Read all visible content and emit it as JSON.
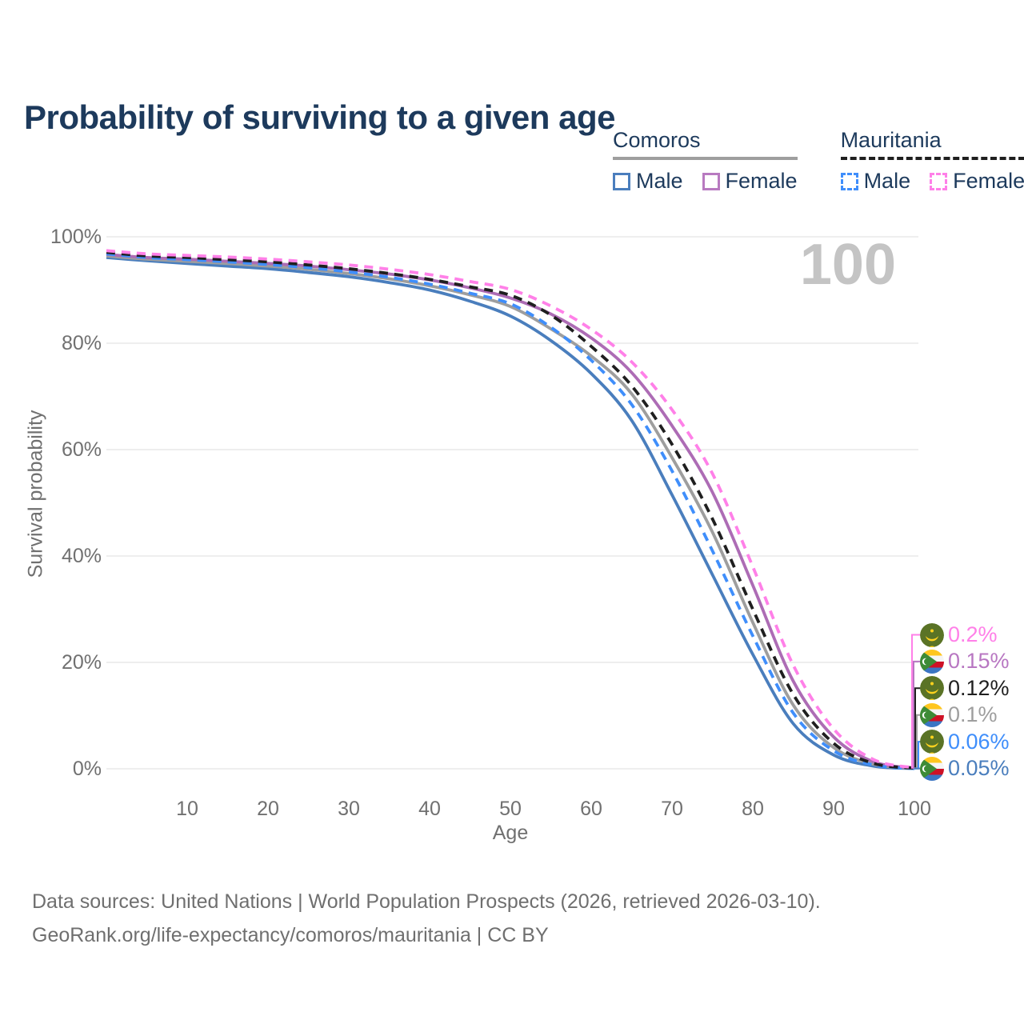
{
  "title": "Probability of surviving to a given age",
  "watermark_age": "100",
  "legend": {
    "groups": [
      {
        "name": "Comoros",
        "line_style": "solid",
        "line_color": "#9e9e9e",
        "items": [
          {
            "label": "Male",
            "color": "#4a7ebd",
            "dashed": false
          },
          {
            "label": "Female",
            "color": "#b87ac0",
            "dashed": false
          }
        ]
      },
      {
        "name": "Mauritania",
        "line_style": "dashed",
        "line_color": "#1f1f1f",
        "items": [
          {
            "label": "Male",
            "color": "#3f8efb",
            "dashed": true
          },
          {
            "label": "Female",
            "color": "#ff80e8",
            "dashed": true
          }
        ]
      }
    ]
  },
  "chart_data": {
    "type": "line",
    "title": "Probability of surviving to a given age",
    "xlabel": "Age",
    "ylabel": "Survival probability",
    "xlim": [
      0,
      100
    ],
    "ylim": [
      0,
      100
    ],
    "x_ticks": [
      10,
      20,
      30,
      40,
      50,
      60,
      70,
      80,
      90,
      100
    ],
    "y_ticks": [
      0,
      20,
      40,
      60,
      80,
      100
    ],
    "y_tick_suffix": "%",
    "grid": "horizontal",
    "x": [
      0,
      5,
      10,
      15,
      20,
      25,
      30,
      35,
      40,
      45,
      50,
      55,
      60,
      65,
      70,
      75,
      80,
      85,
      90,
      95,
      100
    ],
    "series": [
      {
        "key": "comoros_male",
        "country": "Comoros",
        "sex": "Male",
        "color": "#4a7ebd",
        "dashed": false,
        "values": [
          96.1,
          95.5,
          95.0,
          94.5,
          94.0,
          93.3,
          92.5,
          91.4,
          90.0,
          87.9,
          85.1,
          80.5,
          74.3,
          65.5,
          51.5,
          36.5,
          21.5,
          8.5,
          2.6,
          0.5,
          0.05
        ]
      },
      {
        "key": "comoros_total",
        "country": "Comoros",
        "sex": "Both sexes",
        "color": "#9e9e9e",
        "dashed": false,
        "values": [
          96.4,
          95.8,
          95.4,
          95.0,
          94.5,
          93.9,
          93.1,
          92.1,
          90.8,
          89.1,
          86.9,
          82.7,
          77.6,
          70.5,
          58.5,
          44.5,
          27.5,
          12.0,
          4.0,
          0.85,
          0.1
        ]
      },
      {
        "key": "comoros_female",
        "country": "Comoros",
        "sex": "Female",
        "color": "#ad6cb5",
        "dashed": false,
        "values": [
          96.7,
          96.1,
          95.8,
          95.4,
          95.0,
          94.5,
          93.8,
          93.0,
          91.9,
          90.4,
          88.5,
          85.5,
          81.0,
          74.5,
          64.5,
          52.0,
          34.5,
          16.5,
          6.0,
          1.3,
          0.15
        ]
      },
      {
        "key": "mauritania_male",
        "country": "Mauritania",
        "sex": "Male",
        "color": "#3f8efb",
        "dashed": true,
        "values": [
          96.8,
          96.1,
          95.7,
          95.3,
          94.8,
          94.2,
          93.4,
          92.4,
          91.1,
          89.4,
          87.4,
          83.0,
          76.8,
          68.5,
          56.0,
          41.0,
          25.0,
          10.5,
          3.4,
          0.7,
          0.06
        ]
      },
      {
        "key": "mauritania_total",
        "country": "Mauritania",
        "sex": "Both sexes",
        "color": "#1f1f1f",
        "dashed": true,
        "values": [
          97.1,
          96.4,
          96.1,
          95.7,
          95.3,
          94.7,
          94.0,
          93.1,
          92.0,
          90.6,
          89.0,
          85.3,
          79.4,
          72.0,
          61.0,
          47.0,
          30.0,
          14.0,
          4.8,
          1.0,
          0.12
        ]
      },
      {
        "key": "mauritania_female",
        "country": "Mauritania",
        "sex": "Female",
        "color": "#ff80e8",
        "dashed": true,
        "values": [
          97.4,
          96.8,
          96.5,
          96.2,
          95.8,
          95.3,
          94.7,
          93.9,
          92.9,
          91.6,
          90.1,
          87.0,
          82.6,
          76.5,
          67.5,
          55.5,
          38.0,
          19.5,
          7.5,
          1.7,
          0.2
        ]
      }
    ],
    "end_labels": [
      {
        "value": "0.2%",
        "color": "#ff80e8",
        "country": "mauritania",
        "series_key": "mauritania_female"
      },
      {
        "value": "0.15%",
        "color": "#b877c2",
        "country": "comoros",
        "series_key": "comoros_female"
      },
      {
        "value": "0.12%",
        "color": "#1f1f1f",
        "country": "mauritania",
        "series_key": "mauritania_total"
      },
      {
        "value": "0.1%",
        "color": "#9e9e9e",
        "country": "comoros",
        "series_key": "comoros_total"
      },
      {
        "value": "0.06%",
        "color": "#3f8efb",
        "country": "mauritania",
        "series_key": "mauritania_male"
      },
      {
        "value": "0.05%",
        "color": "#4a7ebd",
        "country": "comoros",
        "series_key": "comoros_male"
      }
    ]
  },
  "footer": {
    "line1": "Data sources: United Nations | World Population Prospects (2026, retrieved 2026-03-10).",
    "line2": "GeoRank.org/life-expectancy/comoros/mauritania | CC BY"
  }
}
